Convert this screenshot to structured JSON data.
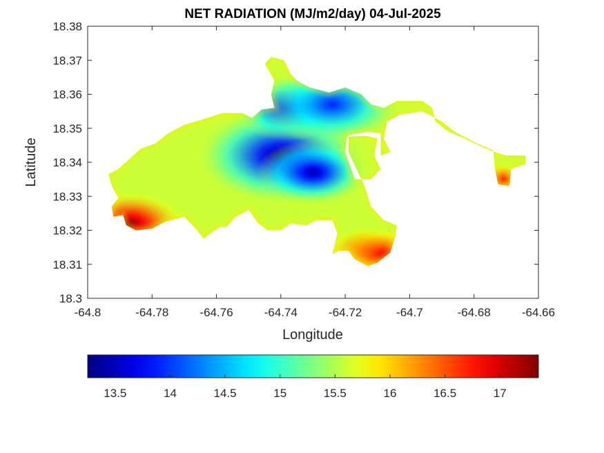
{
  "chart_data": {
    "type": "heatmap",
    "title": "NET RADIATION (MJ/m2/day) 04-Jul-2025",
    "xlabel": "Longitude",
    "ylabel": "Latitude",
    "xlim": [
      -64.8,
      -64.66
    ],
    "ylim": [
      18.3,
      18.38
    ],
    "x_ticks": [
      "-64.8",
      "-64.78",
      "-64.76",
      "-64.74",
      "-64.72",
      "-64.7",
      "-64.68",
      "-64.66"
    ],
    "y_ticks": [
      "18.3",
      "18.31",
      "18.32",
      "18.33",
      "18.34",
      "18.35",
      "18.36",
      "18.37",
      "18.38"
    ],
    "grid": false,
    "colormap": "jet",
    "color_range": [
      13.25,
      17.35
    ],
    "colorbar": {
      "placement": "bottom",
      "ticks": [
        "13.5",
        "14",
        "14.5",
        "15",
        "15.5",
        "16",
        "16.5",
        "17"
      ]
    },
    "region": {
      "outline_lonlat": [
        [
          -64.7935,
          18.3365
        ],
        [
          -64.7905,
          18.338
        ],
        [
          -64.787,
          18.341
        ],
        [
          -64.7835,
          18.344
        ],
        [
          -64.779,
          18.3455
        ],
        [
          -64.775,
          18.3485
        ],
        [
          -64.77,
          18.351
        ],
        [
          -64.763,
          18.353
        ],
        [
          -64.758,
          18.3545
        ],
        [
          -64.752,
          18.3545
        ],
        [
          -64.749,
          18.353
        ],
        [
          -64.746,
          18.3555
        ],
        [
          -64.742,
          18.356
        ],
        [
          -64.743,
          18.36
        ],
        [
          -64.742,
          18.364
        ],
        [
          -64.745,
          18.369
        ],
        [
          -64.743,
          18.371
        ],
        [
          -64.739,
          18.37
        ],
        [
          -64.737,
          18.366
        ],
        [
          -64.735,
          18.364
        ],
        [
          -64.731,
          18.362
        ],
        [
          -64.725,
          18.3605
        ],
        [
          -64.72,
          18.362
        ],
        [
          -64.715,
          18.36
        ],
        [
          -64.712,
          18.357
        ],
        [
          -64.708,
          18.356
        ],
        [
          -64.704,
          18.358
        ],
        [
          -64.696,
          18.358
        ],
        [
          -64.693,
          18.356
        ],
        [
          -64.692,
          18.352
        ],
        [
          -64.688,
          18.349
        ],
        [
          -64.683,
          18.347
        ],
        [
          -64.6775,
          18.3445
        ],
        [
          -64.6735,
          18.343
        ],
        [
          -64.67,
          18.342
        ],
        [
          -64.664,
          18.342
        ],
        [
          -64.664,
          18.3395
        ],
        [
          -64.6685,
          18.338
        ],
        [
          -64.669,
          18.333
        ],
        [
          -64.6725,
          18.3335
        ],
        [
          -64.6735,
          18.338
        ],
        [
          -64.674,
          18.3435
        ],
        [
          -64.679,
          18.3455
        ],
        [
          -64.686,
          18.349
        ],
        [
          -64.69,
          18.352
        ],
        [
          -64.696,
          18.355
        ],
        [
          -64.703,
          18.354
        ],
        [
          -64.707,
          18.352
        ],
        [
          -64.708,
          18.347
        ],
        [
          -64.706,
          18.343
        ],
        [
          -64.709,
          18.342
        ],
        [
          -64.709,
          18.3485
        ],
        [
          -64.713,
          18.349
        ],
        [
          -64.719,
          18.348
        ],
        [
          -64.719,
          18.343
        ],
        [
          -64.717,
          18.339
        ],
        [
          -64.714,
          18.333
        ],
        [
          -64.712,
          18.327
        ],
        [
          -64.708,
          18.323
        ],
        [
          -64.704,
          18.3215
        ],
        [
          -64.7045,
          18.318
        ],
        [
          -64.706,
          18.3135
        ],
        [
          -64.71,
          18.3105
        ],
        [
          -64.713,
          18.3095
        ],
        [
          -64.717,
          18.3115
        ],
        [
          -64.719,
          18.314
        ],
        [
          -64.722,
          18.314
        ],
        [
          -64.724,
          18.313
        ],
        [
          -64.7225,
          18.319
        ],
        [
          -64.724,
          18.323
        ],
        [
          -64.729,
          18.323
        ],
        [
          -64.732,
          18.3215
        ],
        [
          -64.737,
          18.322
        ],
        [
          -64.74,
          18.32
        ],
        [
          -64.744,
          18.32
        ],
        [
          -64.747,
          18.322
        ],
        [
          -64.75,
          18.326
        ],
        [
          -64.754,
          18.324
        ],
        [
          -64.757,
          18.321
        ],
        [
          -64.759,
          18.321
        ],
        [
          -64.762,
          18.319
        ],
        [
          -64.764,
          18.3175
        ],
        [
          -64.766,
          18.32
        ],
        [
          -64.77,
          18.324
        ],
        [
          -64.776,
          18.3225
        ],
        [
          -64.78,
          18.3205
        ],
        [
          -64.785,
          18.32
        ],
        [
          -64.788,
          18.3215
        ],
        [
          -64.789,
          18.3245
        ],
        [
          -64.792,
          18.324
        ],
        [
          -64.7925,
          18.327
        ],
        [
          -64.7905,
          18.3295
        ],
        [
          -64.7925,
          18.333
        ]
      ],
      "hole_lonlat": [
        [
          -64.7195,
          18.3475
        ],
        [
          -64.7135,
          18.3478
        ],
        [
          -64.71,
          18.347
        ],
        [
          -64.711,
          18.342
        ],
        [
          -64.709,
          18.338
        ],
        [
          -64.712,
          18.335
        ],
        [
          -64.717,
          18.335
        ],
        [
          -64.7185,
          18.339
        ],
        [
          -64.72,
          18.343
        ]
      ]
    },
    "field_centers": [
      {
        "lon": -64.74,
        "lat": 18.342,
        "value": 13.3,
        "radius_deg": 0.012
      },
      {
        "lon": -64.73,
        "lat": 18.337,
        "value": 13.4,
        "radius_deg": 0.008
      },
      {
        "lon": -64.738,
        "lat": 18.356,
        "value": 13.6,
        "radius_deg": 0.008
      },
      {
        "lon": -64.724,
        "lat": 18.357,
        "value": 13.9,
        "radius_deg": 0.01
      },
      {
        "lon": -64.787,
        "lat": 18.322,
        "value": 17.3,
        "radius_deg": 0.008
      },
      {
        "lon": -64.713,
        "lat": 18.314,
        "value": 16.8,
        "radius_deg": 0.006
      },
      {
        "lon": -64.708,
        "lat": 18.313,
        "value": 16.9,
        "radius_deg": 0.006
      },
      {
        "lon": -64.671,
        "lat": 18.335,
        "value": 16.7,
        "radius_deg": 0.004
      }
    ]
  }
}
